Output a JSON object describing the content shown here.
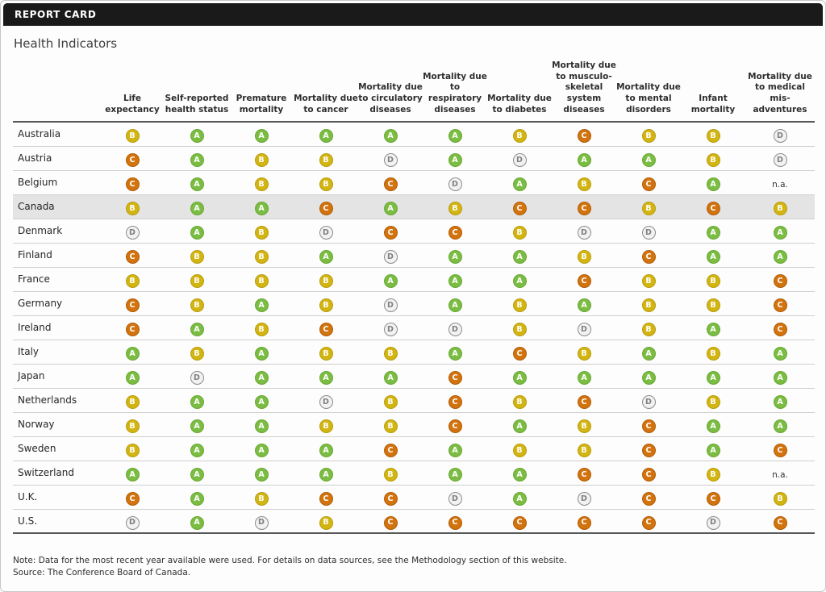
{
  "title_bar": {
    "label": "REPORT CARD"
  },
  "page": {
    "heading": "Health Indicators"
  },
  "chart_data": {
    "type": "table",
    "title": "Health Indicators",
    "columns": [
      "Life expectancy",
      "Self-reported health status",
      "Premature mortality",
      "Mortality due to cancer",
      "Mortality due to circulatory diseases",
      "Mortality due to respiratory diseases",
      "Mortality due to diabetes",
      "Mortality due to musculo-skeletal system diseases",
      "Mortality due to mental disorders",
      "Infant mortality",
      "Mortality due to medical mis-adventures"
    ],
    "rows": [
      {
        "country": "Australia",
        "highlight": false,
        "grades": [
          "B",
          "A",
          "A",
          "A",
          "A",
          "A",
          "B",
          "C",
          "B",
          "B",
          "D"
        ]
      },
      {
        "country": "Austria",
        "highlight": false,
        "grades": [
          "C",
          "A",
          "B",
          "B",
          "D",
          "A",
          "D",
          "A",
          "A",
          "B",
          "D"
        ]
      },
      {
        "country": "Belgium",
        "highlight": false,
        "grades": [
          "C",
          "A",
          "B",
          "B",
          "C",
          "D",
          "A",
          "B",
          "C",
          "A",
          "n.a."
        ]
      },
      {
        "country": "Canada",
        "highlight": true,
        "grades": [
          "B",
          "A",
          "A",
          "C",
          "A",
          "B",
          "C",
          "C",
          "B",
          "C",
          "B"
        ]
      },
      {
        "country": "Denmark",
        "highlight": false,
        "grades": [
          "D",
          "A",
          "B",
          "D",
          "C",
          "C",
          "B",
          "D",
          "D",
          "A",
          "A"
        ]
      },
      {
        "country": "Finland",
        "highlight": false,
        "grades": [
          "C",
          "B",
          "B",
          "A",
          "D",
          "A",
          "A",
          "B",
          "C",
          "A",
          "A"
        ]
      },
      {
        "country": "France",
        "highlight": false,
        "grades": [
          "B",
          "B",
          "B",
          "B",
          "A",
          "A",
          "A",
          "C",
          "B",
          "B",
          "C"
        ]
      },
      {
        "country": "Germany",
        "highlight": false,
        "grades": [
          "C",
          "B",
          "A",
          "B",
          "D",
          "A",
          "B",
          "A",
          "B",
          "B",
          "C"
        ]
      },
      {
        "country": "Ireland",
        "highlight": false,
        "grades": [
          "C",
          "A",
          "B",
          "C",
          "D",
          "D",
          "B",
          "D",
          "B",
          "A",
          "C"
        ]
      },
      {
        "country": "Italy",
        "highlight": false,
        "grades": [
          "A",
          "B",
          "A",
          "B",
          "B",
          "A",
          "C",
          "B",
          "A",
          "B",
          "A"
        ]
      },
      {
        "country": "Japan",
        "highlight": false,
        "grades": [
          "A",
          "D",
          "A",
          "A",
          "A",
          "C",
          "A",
          "A",
          "A",
          "A",
          "A"
        ]
      },
      {
        "country": "Netherlands",
        "highlight": false,
        "grades": [
          "B",
          "A",
          "A",
          "D",
          "B",
          "C",
          "B",
          "C",
          "D",
          "B",
          "A"
        ]
      },
      {
        "country": "Norway",
        "highlight": false,
        "grades": [
          "B",
          "A",
          "A",
          "B",
          "B",
          "C",
          "A",
          "B",
          "C",
          "A",
          "A"
        ]
      },
      {
        "country": "Sweden",
        "highlight": false,
        "grades": [
          "B",
          "A",
          "A",
          "A",
          "C",
          "A",
          "B",
          "B",
          "C",
          "A",
          "C"
        ]
      },
      {
        "country": "Switzerland",
        "highlight": false,
        "grades": [
          "A",
          "A",
          "A",
          "A",
          "B",
          "A",
          "A",
          "C",
          "C",
          "B",
          "n.a."
        ]
      },
      {
        "country": "U.K.",
        "highlight": false,
        "grades": [
          "C",
          "A",
          "B",
          "C",
          "C",
          "D",
          "A",
          "D",
          "C",
          "C",
          "B"
        ]
      },
      {
        "country": "U.S.",
        "highlight": false,
        "grades": [
          "D",
          "A",
          "D",
          "B",
          "C",
          "C",
          "C",
          "C",
          "C",
          "D",
          "C"
        ]
      }
    ]
  },
  "grade_styles": {
    "A": {
      "bg": "#7bbd42",
      "border": "#69a834",
      "text": "#ffffff"
    },
    "B": {
      "bg": "#d3b512",
      "border": "#b89d0c",
      "text": "#ffffff"
    },
    "C": {
      "bg": "#d2730e",
      "border": "#b25d06",
      "text": "#ffffff"
    },
    "D": {
      "bg": "#f2f2f2",
      "border": "#8b8b8b",
      "text": "#808080"
    }
  },
  "footer": {
    "note": "Note: Data for the most recent year available were used. For details on data sources, see the Methodology section of this website.",
    "source": "Source: The Conference Board of Canada."
  }
}
